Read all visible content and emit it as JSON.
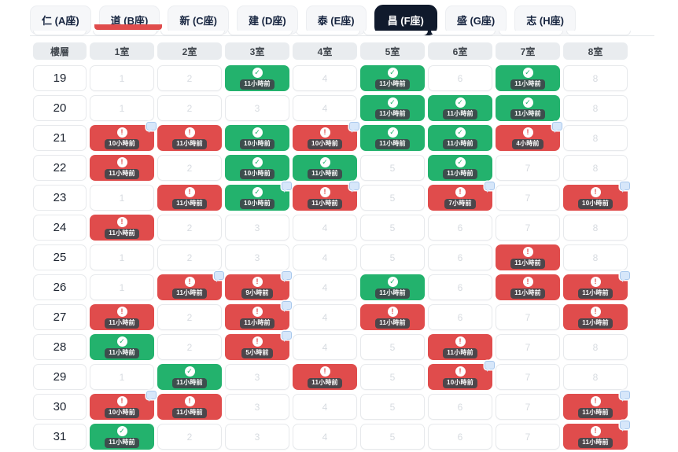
{
  "colors": {
    "done": "#23b26d",
    "issue": "#e04c4c",
    "tab_active_bg": "#101a2c",
    "badge_bg": "rgba(64,69,75,0.92)",
    "comment_bubble": "#d7e7fa"
  },
  "icons": {
    "done": "✓",
    "issue": "!"
  },
  "tabs": [
    {
      "label": "仁 (A座)",
      "active": false
    },
    {
      "label": "道 (B座)",
      "active": false
    },
    {
      "label": "新 (C座)",
      "active": false
    },
    {
      "label": "建 (D座)",
      "active": false
    },
    {
      "label": "泰 (E座)",
      "active": false
    },
    {
      "label": "昌 (F座)",
      "active": true
    },
    {
      "label": "盛 (G座)",
      "active": false
    },
    {
      "label": "志 (H座)",
      "active": false
    }
  ],
  "table": {
    "floor_header": "樓層",
    "room_headers": [
      "1室",
      "2室",
      "3室",
      "4室",
      "5室",
      "6室",
      "7室",
      "8室"
    ],
    "rows": [
      {
        "floor": "19",
        "cells": [
          {
            "status": "none",
            "num": "1"
          },
          {
            "status": "none",
            "num": "2"
          },
          {
            "status": "done",
            "time": "11小時前",
            "comment": false
          },
          {
            "status": "none",
            "num": "4"
          },
          {
            "status": "done",
            "time": "11小時前",
            "comment": false
          },
          {
            "status": "none",
            "num": "6"
          },
          {
            "status": "done",
            "time": "11小時前",
            "comment": false
          },
          {
            "status": "none",
            "num": "8"
          }
        ]
      },
      {
        "floor": "20",
        "cells": [
          {
            "status": "none",
            "num": "1"
          },
          {
            "status": "none",
            "num": "2"
          },
          {
            "status": "none",
            "num": "3"
          },
          {
            "status": "none",
            "num": "4"
          },
          {
            "status": "done",
            "time": "11小時前",
            "comment": false
          },
          {
            "status": "done",
            "time": "11小時前",
            "comment": false
          },
          {
            "status": "done",
            "time": "11小時前",
            "comment": false
          },
          {
            "status": "none",
            "num": "8"
          }
        ]
      },
      {
        "floor": "21",
        "cells": [
          {
            "status": "issue",
            "time": "10小時前",
            "comment": true
          },
          {
            "status": "issue",
            "time": "11小時前",
            "comment": false
          },
          {
            "status": "done",
            "time": "10小時前",
            "comment": false
          },
          {
            "status": "issue",
            "time": "10小時前",
            "comment": true
          },
          {
            "status": "done",
            "time": "11小時前",
            "comment": false
          },
          {
            "status": "done",
            "time": "11小時前",
            "comment": false
          },
          {
            "status": "issue",
            "time": "4小時前",
            "comment": true
          },
          {
            "status": "none",
            "num": "8"
          }
        ]
      },
      {
        "floor": "22",
        "cells": [
          {
            "status": "issue",
            "time": "11小時前",
            "comment": false
          },
          {
            "status": "none",
            "num": "2"
          },
          {
            "status": "done",
            "time": "10小時前",
            "comment": false
          },
          {
            "status": "done",
            "time": "11小時前",
            "comment": false
          },
          {
            "status": "none",
            "num": "5"
          },
          {
            "status": "done",
            "time": "11小時前",
            "comment": false
          },
          {
            "status": "none",
            "num": "7"
          },
          {
            "status": "none",
            "num": "8"
          }
        ]
      },
      {
        "floor": "23",
        "cells": [
          {
            "status": "none",
            "num": "1"
          },
          {
            "status": "issue",
            "time": "11小時前",
            "comment": false
          },
          {
            "status": "done",
            "time": "10小時前",
            "comment": true
          },
          {
            "status": "issue",
            "time": "11小時前",
            "comment": true
          },
          {
            "status": "none",
            "num": "5"
          },
          {
            "status": "issue",
            "time": "7小時前",
            "comment": true
          },
          {
            "status": "none",
            "num": "7"
          },
          {
            "status": "issue",
            "time": "10小時前",
            "comment": true
          }
        ]
      },
      {
        "floor": "24",
        "cells": [
          {
            "status": "issue",
            "time": "11小時前",
            "comment": false
          },
          {
            "status": "none",
            "num": "2"
          },
          {
            "status": "none",
            "num": "3"
          },
          {
            "status": "none",
            "num": "4"
          },
          {
            "status": "none",
            "num": "5"
          },
          {
            "status": "none",
            "num": "6"
          },
          {
            "status": "none",
            "num": "7"
          },
          {
            "status": "none",
            "num": "8"
          }
        ]
      },
      {
        "floor": "25",
        "cells": [
          {
            "status": "none",
            "num": "1"
          },
          {
            "status": "none",
            "num": "2"
          },
          {
            "status": "none",
            "num": "3"
          },
          {
            "status": "none",
            "num": "4"
          },
          {
            "status": "none",
            "num": "5"
          },
          {
            "status": "none",
            "num": "6"
          },
          {
            "status": "issue",
            "time": "11小時前",
            "comment": false
          },
          {
            "status": "none",
            "num": "8"
          }
        ]
      },
      {
        "floor": "26",
        "cells": [
          {
            "status": "none",
            "num": "1"
          },
          {
            "status": "issue",
            "time": "11小時前",
            "comment": true
          },
          {
            "status": "issue",
            "time": "9小時前",
            "comment": true
          },
          {
            "status": "none",
            "num": "4"
          },
          {
            "status": "done",
            "time": "11小時前",
            "comment": false
          },
          {
            "status": "none",
            "num": "6"
          },
          {
            "status": "issue",
            "time": "11小時前",
            "comment": false
          },
          {
            "status": "issue",
            "time": "11小時前",
            "comment": true
          }
        ]
      },
      {
        "floor": "27",
        "cells": [
          {
            "status": "issue",
            "time": "11小時前",
            "comment": false
          },
          {
            "status": "none",
            "num": "2"
          },
          {
            "status": "issue",
            "time": "11小時前",
            "comment": true
          },
          {
            "status": "none",
            "num": "4"
          },
          {
            "status": "issue",
            "time": "11小時前",
            "comment": false
          },
          {
            "status": "none",
            "num": "6"
          },
          {
            "status": "none",
            "num": "7"
          },
          {
            "status": "issue",
            "time": "11小時前",
            "comment": false
          }
        ]
      },
      {
        "floor": "28",
        "cells": [
          {
            "status": "done",
            "time": "11小時前",
            "comment": false
          },
          {
            "status": "none",
            "num": "2"
          },
          {
            "status": "issue",
            "time": "5小時前",
            "comment": true
          },
          {
            "status": "none",
            "num": "4"
          },
          {
            "status": "none",
            "num": "5"
          },
          {
            "status": "issue",
            "time": "11小時前",
            "comment": false
          },
          {
            "status": "none",
            "num": "7"
          },
          {
            "status": "none",
            "num": "8"
          }
        ]
      },
      {
        "floor": "29",
        "cells": [
          {
            "status": "none",
            "num": "1"
          },
          {
            "status": "done",
            "time": "11小時前",
            "comment": false
          },
          {
            "status": "none",
            "num": "3"
          },
          {
            "status": "issue",
            "time": "11小時前",
            "comment": false
          },
          {
            "status": "none",
            "num": "5"
          },
          {
            "status": "issue",
            "time": "10小時前",
            "comment": true
          },
          {
            "status": "none",
            "num": "7"
          },
          {
            "status": "none",
            "num": "8"
          }
        ]
      },
      {
        "floor": "30",
        "cells": [
          {
            "status": "issue",
            "time": "10小時前",
            "comment": true
          },
          {
            "status": "issue",
            "time": "11小時前",
            "comment": false
          },
          {
            "status": "none",
            "num": "3"
          },
          {
            "status": "none",
            "num": "4"
          },
          {
            "status": "none",
            "num": "5"
          },
          {
            "status": "none",
            "num": "6"
          },
          {
            "status": "none",
            "num": "7"
          },
          {
            "status": "issue",
            "time": "11小時前",
            "comment": true
          }
        ]
      },
      {
        "floor": "31",
        "cells": [
          {
            "status": "done",
            "time": "11小時前",
            "comment": false
          },
          {
            "status": "none",
            "num": "2"
          },
          {
            "status": "none",
            "num": "3"
          },
          {
            "status": "none",
            "num": "4"
          },
          {
            "status": "none",
            "num": "5"
          },
          {
            "status": "none",
            "num": "6"
          },
          {
            "status": "none",
            "num": "7"
          },
          {
            "status": "issue",
            "time": "11小時前",
            "comment": true
          }
        ]
      }
    ]
  }
}
